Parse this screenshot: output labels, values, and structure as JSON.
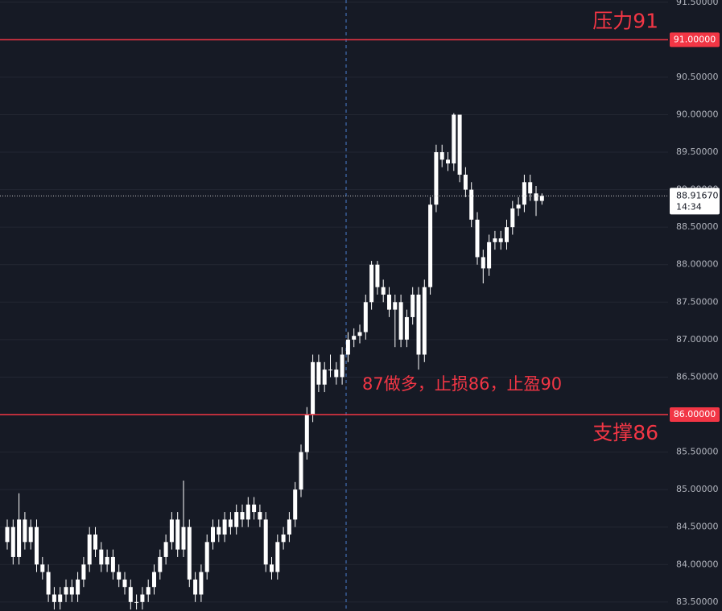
{
  "chart_data": {
    "type": "candlestick",
    "color": "#ffffff",
    "open": [
      84.3,
      84.5,
      84.1,
      84.6,
      84.3,
      84.5,
      84.0,
      83.9,
      83.6,
      83.5,
      83.6,
      83.7,
      83.6,
      83.8,
      84.0,
      84.4,
      84.2,
      84.0,
      84.1,
      83.9,
      83.8,
      83.7,
      83.5,
      83.5,
      83.6,
      83.7,
      83.9,
      84.1,
      84.3,
      84.6,
      84.2,
      84.5,
      83.8,
      83.6,
      83.9,
      84.3,
      84.5,
      84.4,
      84.6,
      84.5,
      84.7,
      84.6,
      84.8,
      84.7,
      84.6,
      84.0,
      83.9,
      84.3,
      84.4,
      84.6,
      85.0,
      85.5,
      86.0,
      86.7,
      86.4,
      86.6,
      86.6,
      86.5,
      86.8,
      87.0,
      87.05,
      87.1,
      87.5,
      88.0,
      87.7,
      87.6,
      87.4,
      87.5,
      87.0,
      87.3,
      87.6,
      86.8,
      87.7,
      88.8,
      89.5,
      89.4,
      89.35,
      90.0,
      89.2,
      89.0,
      88.6,
      88.1,
      87.95,
      88.3,
      88.35,
      88.3,
      88.5,
      88.75,
      88.8,
      89.1,
      88.95,
      88.85
    ],
    "high": [
      84.6,
      84.6,
      84.95,
      84.7,
      84.6,
      84.6,
      84.1,
      84.0,
      83.7,
      83.7,
      83.8,
      83.8,
      83.9,
      84.1,
      84.5,
      84.5,
      84.3,
      84.2,
      84.2,
      84.0,
      83.9,
      83.8,
      83.6,
      83.7,
      83.8,
      84.0,
      84.2,
      84.4,
      84.7,
      84.7,
      85.12,
      84.6,
      83.9,
      84.0,
      84.4,
      84.6,
      84.6,
      84.7,
      84.7,
      84.8,
      84.8,
      84.9,
      84.9,
      84.8,
      84.7,
      84.1,
      84.4,
      84.5,
      84.7,
      85.1,
      85.6,
      86.1,
      86.8,
      86.8,
      86.7,
      86.8,
      86.7,
      86.9,
      87.1,
      87.15,
      87.2,
      87.6,
      88.05,
      88.05,
      87.8,
      87.7,
      87.6,
      87.6,
      87.4,
      87.7,
      87.7,
      87.8,
      88.9,
      89.6,
      89.6,
      89.5,
      90.02,
      90.0,
      89.3,
      89.1,
      88.7,
      88.2,
      88.4,
      88.45,
      88.45,
      88.6,
      88.85,
      88.9,
      89.2,
      89.2,
      89.05,
      88.95
    ],
    "low": [
      84.2,
      84.0,
      84.0,
      84.2,
      84.2,
      83.9,
      83.8,
      83.5,
      83.4,
      83.4,
      83.5,
      83.5,
      83.5,
      83.7,
      83.9,
      84.1,
      83.9,
      83.9,
      83.8,
      83.7,
      83.6,
      83.4,
      83.4,
      83.4,
      83.5,
      83.6,
      83.8,
      84.0,
      84.2,
      84.1,
      84.1,
      83.7,
      83.5,
      83.5,
      83.8,
      84.2,
      84.3,
      84.3,
      84.4,
      84.4,
      84.5,
      84.5,
      84.6,
      84.5,
      83.9,
      83.8,
      83.8,
      84.2,
      84.3,
      84.5,
      84.9,
      85.4,
      85.9,
      86.3,
      86.3,
      86.5,
      86.4,
      86.4,
      86.7,
      86.9,
      86.95,
      87.0,
      87.4,
      87.6,
      87.5,
      87.3,
      86.9,
      86.9,
      86.9,
      87.2,
      86.6,
      86.7,
      87.6,
      88.7,
      89.3,
      89.25,
      89.25,
      89.1,
      88.9,
      88.5,
      88.0,
      87.75,
      87.85,
      88.2,
      88.2,
      88.2,
      88.4,
      88.65,
      88.7,
      88.85,
      88.65,
      88.8
    ],
    "close": [
      84.5,
      84.1,
      84.6,
      84.3,
      84.5,
      84.0,
      83.9,
      83.6,
      83.5,
      83.6,
      83.7,
      83.6,
      83.8,
      84.0,
      84.4,
      84.2,
      84.0,
      84.1,
      83.9,
      83.8,
      83.7,
      83.5,
      83.5,
      83.6,
      83.7,
      83.9,
      84.1,
      84.3,
      84.6,
      84.2,
      84.5,
      83.8,
      83.6,
      83.9,
      84.3,
      84.5,
      84.4,
      84.6,
      84.5,
      84.7,
      84.6,
      84.8,
      84.7,
      84.6,
      84.0,
      83.9,
      84.3,
      84.4,
      84.6,
      85.0,
      85.5,
      86.0,
      86.7,
      86.4,
      86.6,
      86.6,
      86.5,
      86.8,
      87.0,
      87.05,
      87.1,
      87.5,
      88.0,
      87.7,
      87.6,
      87.4,
      87.5,
      87.0,
      87.3,
      87.6,
      86.8,
      87.7,
      88.8,
      89.5,
      89.4,
      89.35,
      90.0,
      89.2,
      89.0,
      88.6,
      88.1,
      87.95,
      88.3,
      88.35,
      88.3,
      88.5,
      88.75,
      88.8,
      89.1,
      88.95,
      88.85,
      88.9167
    ],
    "ylim": [
      83.38,
      91.53
    ],
    "yticks": [
      {
        "value": 91.5,
        "label": "91.50000"
      },
      {
        "value": 90.5,
        "label": "90.50000"
      },
      {
        "value": 90,
        "label": "90.00000"
      },
      {
        "value": 89.5,
        "label": "89.50000"
      },
      {
        "value": 89,
        "label": "89.00000"
      },
      {
        "value": 88.5,
        "label": "88.50000"
      },
      {
        "value": 88,
        "label": "88.00000"
      },
      {
        "value": 87.5,
        "label": "87.50000"
      },
      {
        "value": 87,
        "label": "87.00000"
      },
      {
        "value": 86.5,
        "label": "86.50000"
      },
      {
        "value": 85.5,
        "label": "85.50000"
      },
      {
        "value": 85,
        "label": "85.00000"
      },
      {
        "value": 84.5,
        "label": "84.50000"
      },
      {
        "value": 84,
        "label": "84.00000"
      },
      {
        "value": 83.5,
        "label": "83.50000"
      }
    ],
    "grid": true,
    "hlines": [
      {
        "value": 91,
        "label": "91.00000",
        "text": "压力91",
        "color": "#f23645"
      },
      {
        "value": 86,
        "label": "86.00000",
        "text": "支撑86",
        "color": "#f23645"
      }
    ],
    "last_price": {
      "value": 88.9167,
      "label": "88.91670",
      "time": "14:34"
    },
    "annotation": "87做多，止损86，止盈90"
  }
}
